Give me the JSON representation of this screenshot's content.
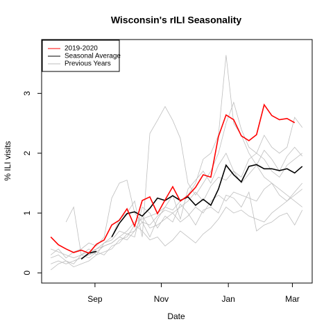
{
  "chart_data": {
    "type": "line",
    "title": "Wisconsin's rILI Seasonality",
    "xlabel": "Date",
    "ylabel": "% ILI visits",
    "x": [
      0,
      1,
      2,
      3,
      4,
      5,
      6,
      7,
      8,
      9,
      10,
      11,
      12,
      13,
      14,
      15,
      16,
      17,
      18,
      19,
      20,
      21,
      22,
      23,
      24,
      25,
      26,
      27,
      28,
      29,
      30,
      31,
      32,
      33
    ],
    "xlim": [
      -1.2,
      34.3
    ],
    "ylim": [
      -0.17,
      3.9
    ],
    "xticks": [
      {
        "value": 5.8,
        "label": "Sep"
      },
      {
        "value": 14.5,
        "label": "Nov"
      },
      {
        "value": 23.3,
        "label": "Jan"
      },
      {
        "value": 31.7,
        "label": "Mar"
      }
    ],
    "yticks": [
      0,
      1,
      2,
      3
    ],
    "legend": "top-left",
    "series": [
      {
        "name": "2019-2020",
        "color": "#ff0000",
        "width": 1.6,
        "values": [
          0.6,
          0.47,
          0.4,
          0.34,
          0.38,
          0.33,
          0.48,
          0.55,
          0.8,
          0.88,
          1.07,
          0.78,
          1.21,
          1.27,
          0.99,
          1.22,
          1.44,
          1.2,
          1.29,
          1.43,
          1.64,
          1.6,
          2.28,
          2.64,
          2.56,
          2.29,
          2.21,
          2.31,
          2.81,
          2.63,
          2.56,
          2.58,
          2.51,
          null
        ]
      },
      {
        "name": "Seasonal Average",
        "color": "#000000",
        "width": 1.6,
        "values": [
          null,
          null,
          null,
          null,
          0.23,
          0.33,
          0.36,
          null,
          0.6,
          0.83,
          0.99,
          1.02,
          0.95,
          1.08,
          1.25,
          1.21,
          1.29,
          1.21,
          1.27,
          1.13,
          1.23,
          1.13,
          1.4,
          1.8,
          1.64,
          1.52,
          1.78,
          1.81,
          1.74,
          1.74,
          1.71,
          1.74,
          1.67,
          1.78
        ]
      },
      {
        "name": "Previous Years",
        "color": "#bebebe",
        "width": 0.8,
        "values": [
          0.15,
          0.2,
          0.15,
          0.2,
          0.25,
          0.3,
          0.35,
          0.45,
          0.5,
          0.6,
          0.7,
          0.85,
          0.9,
          0.95,
          1.0,
          1.1,
          1.05,
          1.2,
          1.3,
          1.5,
          1.9,
          2.0,
          2.3,
          3.64,
          2.5,
          2.3,
          2.0,
          1.8,
          1.6,
          1.5,
          1.4,
          1.3,
          1.2,
          1.1
        ]
      },
      {
        "name": "Previous Years",
        "color": "#bebebe",
        "width": 0.8,
        "values": [
          null,
          null,
          0.85,
          1.1,
          0.3,
          0.35,
          0.4,
          0.5,
          0.6,
          0.9,
          1.0,
          1.2,
          0.6,
          2.33,
          2.55,
          2.78,
          2.55,
          2.25,
          1.5,
          1.3,
          1.5,
          1.7,
          2.0,
          2.5,
          2.85,
          2.4,
          2.1,
          2.0,
          2.3,
          2.1,
          2.0,
          2.1,
          2.6,
          2.43
        ]
      },
      {
        "name": "Previous Years",
        "color": "#bebebe",
        "width": 0.8,
        "values": [
          0.3,
          0.4,
          0.25,
          0.35,
          0.4,
          0.5,
          0.45,
          0.6,
          1.25,
          1.5,
          1.55,
          1.0,
          0.85,
          0.6,
          0.9,
          1.1,
          1.3,
          0.9,
          1.4,
          1.55,
          1.7,
          1.5,
          1.8,
          2.0,
          1.7,
          1.6,
          1.9,
          2.0,
          1.9,
          1.7,
          1.6,
          1.8,
          1.9,
          2.0
        ]
      },
      {
        "name": "Previous Years",
        "color": "#bebebe",
        "width": 0.8,
        "values": [
          0.05,
          0.15,
          0.2,
          0.1,
          0.15,
          0.2,
          0.3,
          0.35,
          0.4,
          0.55,
          0.6,
          0.8,
          0.7,
          0.55,
          0.6,
          0.45,
          0.55,
          0.7,
          0.6,
          0.5,
          0.65,
          0.75,
          0.9,
          1.1,
          1.0,
          1.05,
          0.95,
          0.9,
          0.85,
          1.0,
          1.1,
          1.2,
          1.3,
          1.4
        ]
      },
      {
        "name": "Previous Years",
        "color": "#bebebe",
        "width": 0.8,
        "values": [
          0.25,
          0.3,
          0.2,
          0.15,
          0.3,
          0.25,
          0.35,
          0.3,
          0.45,
          0.5,
          0.65,
          0.7,
          0.95,
          0.75,
          0.8,
          0.9,
          1.0,
          0.85,
          0.95,
          1.1,
          1.0,
          1.2,
          1.3,
          1.2,
          1.35,
          1.3,
          1.25,
          1.2,
          1.4,
          1.5,
          1.3,
          1.2,
          1.35,
          1.5
        ]
      },
      {
        "name": "Previous Years",
        "color": "#bebebe",
        "width": 0.8,
        "values": [
          0.4,
          0.35,
          0.3,
          0.25,
          0.3,
          0.4,
          0.3,
          0.5,
          0.55,
          0.7,
          0.65,
          0.6,
          1.1,
          1.0,
          0.75,
          0.95,
          0.85,
          1.15,
          1.0,
          0.8,
          1.05,
          1.1,
          1.0,
          1.3,
          1.25,
          1.1,
          1.35,
          0.7,
          0.8,
          0.85,
          0.95,
          1.0,
          0.8,
          1.05
        ]
      },
      {
        "name": "Previous Years",
        "color": "#bebebe",
        "width": 0.8,
        "values": [
          null,
          null,
          null,
          0.2,
          0.25,
          0.3,
          0.4,
          0.45,
          0.5,
          0.6,
          0.55,
          0.7,
          0.85,
          0.8,
          0.95,
          1.05,
          1.0,
          1.1,
          1.2,
          1.35,
          1.2,
          1.45,
          1.6,
          1.55,
          1.7,
          1.5,
          1.65,
          1.8,
          2.05,
          1.9,
          1.7,
          1.95,
          2.1,
          1.95
        ]
      }
    ]
  }
}
